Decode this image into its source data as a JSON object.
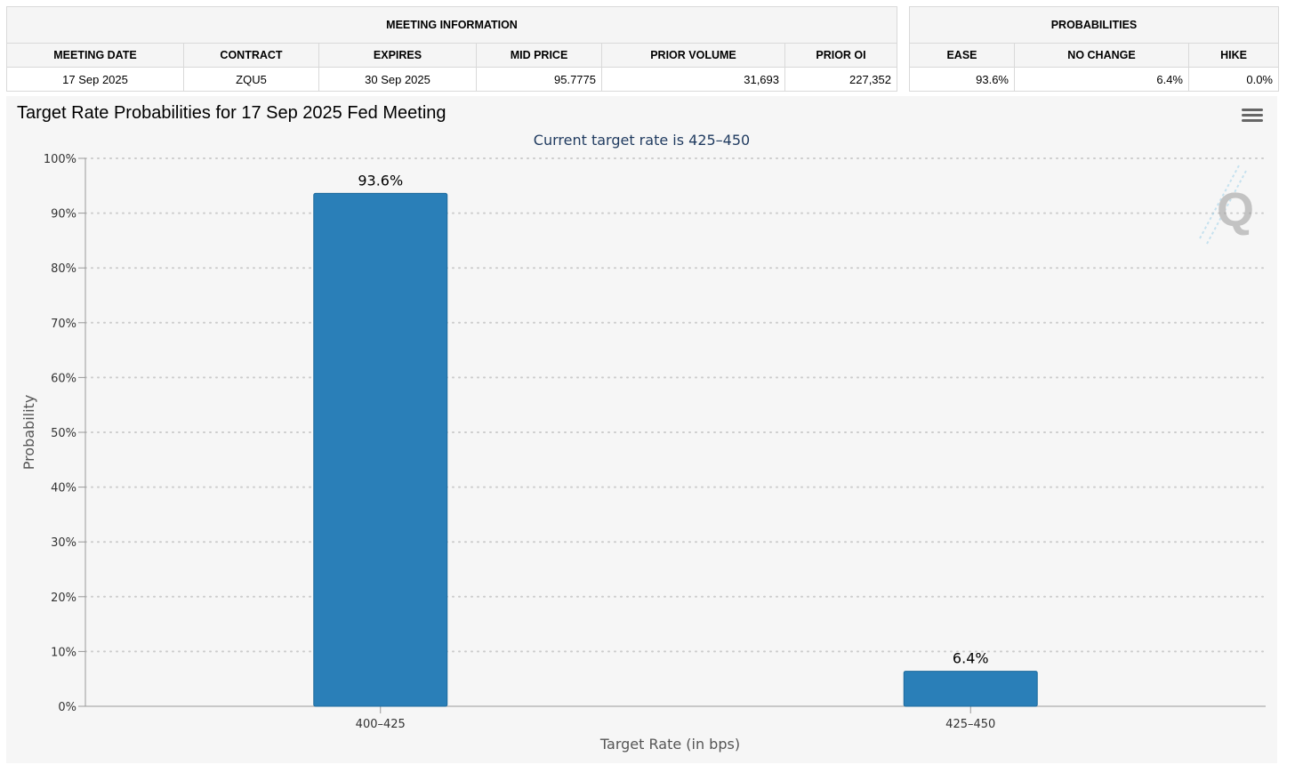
{
  "meeting_info": {
    "title": "MEETING INFORMATION",
    "headers": [
      "MEETING DATE",
      "CONTRACT",
      "EXPIRES",
      "MID PRICE",
      "PRIOR VOLUME",
      "PRIOR OI"
    ],
    "row": {
      "meeting_date": "17 Sep 2025",
      "contract": "ZQU5",
      "expires": "30 Sep 2025",
      "mid_price": "95.7775",
      "prior_volume": "31,693",
      "prior_oi": "227,352"
    }
  },
  "probabilities": {
    "title": "PROBABILITIES",
    "headers": [
      "EASE",
      "NO CHANGE",
      "HIKE"
    ],
    "row": {
      "ease": "93.6%",
      "no_change": "6.4%",
      "hike": "0.0%"
    }
  },
  "chart": {
    "title": "Target Rate Probabilities for 17 Sep 2025 Fed Meeting",
    "subtitle": "Current target rate is 425–450",
    "menu_icon": "hamburger-menu-icon",
    "watermark_icon": "q-logo-icon",
    "colors": {
      "bar": "#2a7fb8",
      "bar_stroke": "#1d6a9c",
      "grid": "#cccccc",
      "background": "#f6f6f6"
    }
  },
  "chart_data": {
    "type": "bar",
    "title": "Target Rate Probabilities for 17 Sep 2025 Fed Meeting",
    "subtitle": "Current target rate is 425–450",
    "categories": [
      "400–425",
      "425–450"
    ],
    "values": [
      93.6,
      6.4
    ],
    "data_labels": [
      "93.6%",
      "6.4%"
    ],
    "xlabel": "Target Rate (in bps)",
    "ylabel": "Probability",
    "ylim": [
      0,
      100
    ],
    "yticks": [
      0,
      10,
      20,
      30,
      40,
      50,
      60,
      70,
      80,
      90,
      100
    ],
    "ytick_labels": [
      "0%",
      "10%",
      "20%",
      "30%",
      "40%",
      "50%",
      "60%",
      "70%",
      "80%",
      "90%",
      "100%"
    ],
    "grid": true,
    "legend": "none"
  }
}
